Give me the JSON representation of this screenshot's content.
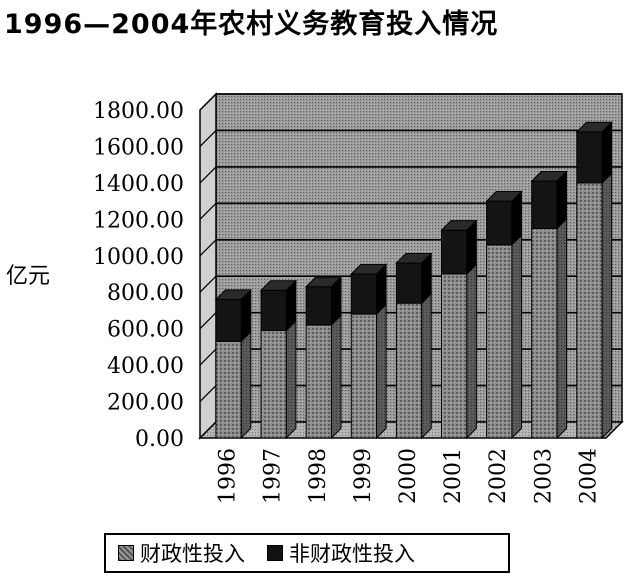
{
  "chart_data": {
    "type": "bar",
    "stacked": true,
    "three_d": true,
    "title": "1996—2004年农村义务教育投入情况",
    "ylabel": "亿元",
    "xlabel": "",
    "categories": [
      "1996",
      "1997",
      "1998",
      "1999",
      "2000",
      "2001",
      "2002",
      "2003",
      "2004"
    ],
    "series": [
      {
        "name": "财政性投入",
        "values": [
          530,
          590,
          620,
          680,
          740,
          900,
          1060,
          1150,
          1400
        ],
        "color": "#8a8a8a"
      },
      {
        "name": "非财政性投入",
        "values": [
          230,
          220,
          210,
          220,
          220,
          240,
          240,
          260,
          280
        ],
        "color": "#111111"
      }
    ],
    "ylim": [
      0,
      1800
    ],
    "yticks": [
      "0.00",
      "200.00",
      "400.00",
      "600.00",
      "800.00",
      "1000.00",
      "1200.00",
      "1400.00",
      "1600.00",
      "1800.00"
    ],
    "grid": true,
    "legend_position": "bottom"
  }
}
